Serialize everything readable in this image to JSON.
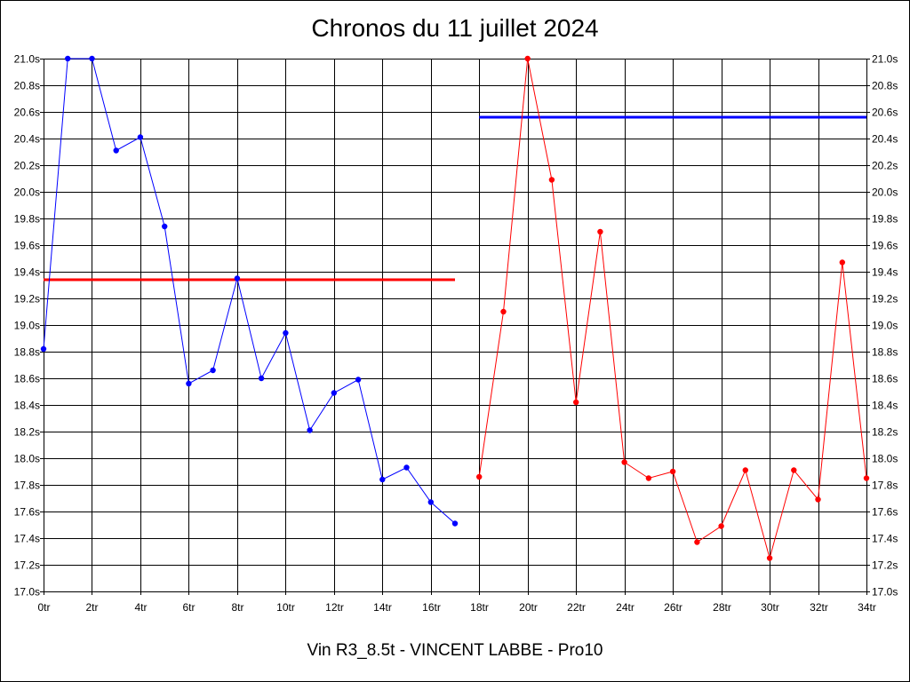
{
  "title": "Chronos du 11 juillet 2024",
  "footer": "Vin R3_8.5t - VINCENT LABBE - Pro10",
  "colors": {
    "series_blue": "#0000ff",
    "series_red": "#ff0000",
    "grid": "#000000",
    "background": "#ffffff"
  },
  "chart_data": {
    "type": "line",
    "title": "Chronos du 11 juillet 2024",
    "xlabel": "",
    "ylabel": "",
    "xlim": [
      0,
      34
    ],
    "ylim": [
      17.0,
      21.0
    ],
    "grid": true,
    "x_tick_labels": [
      "0tr",
      "2tr",
      "4tr",
      "6tr",
      "8tr",
      "10tr",
      "12tr",
      "14tr",
      "16tr",
      "18tr",
      "20tr",
      "22tr",
      "24tr",
      "26tr",
      "28tr",
      "30tr",
      "32tr",
      "34tr"
    ],
    "y_tick_labels": [
      "21.0s",
      "20.8s",
      "20.6s",
      "20.4s",
      "20.2s",
      "20.0s",
      "19.8s",
      "19.6s",
      "19.4s",
      "19.2s",
      "19.0s",
      "18.8s",
      "18.6s",
      "18.4s",
      "18.2s",
      "18.0s",
      "17.8s",
      "17.6s",
      "17.4s",
      "17.2s",
      "17.0s"
    ],
    "series": [
      {
        "color": "#0000ff",
        "x": [
          0,
          1,
          2,
          3,
          4,
          5,
          6,
          7,
          8,
          9,
          10,
          11,
          12,
          13,
          14,
          15,
          16,
          17
        ],
        "values": [
          18.82,
          21.0,
          21.0,
          20.31,
          20.41,
          19.74,
          18.56,
          18.66,
          19.35,
          18.6,
          18.94,
          18.21,
          18.49,
          18.59,
          17.84,
          17.93,
          17.67,
          17.51
        ]
      },
      {
        "color": "#ff0000",
        "x": [
          18,
          19,
          20,
          21,
          22,
          23,
          24,
          25,
          26,
          27,
          28,
          29,
          30,
          31,
          32,
          33,
          34
        ],
        "values": [
          17.86,
          19.1,
          21.0,
          20.09,
          18.42,
          19.7,
          17.97,
          17.85,
          17.9,
          17.37,
          17.49,
          17.91,
          17.25,
          17.91,
          17.69,
          19.47,
          17.85
        ]
      }
    ],
    "reference_lines": [
      {
        "color": "#ff0000",
        "value": 19.34,
        "x_range": [
          0,
          17
        ]
      },
      {
        "color": "#0000ff",
        "value": 20.56,
        "x_range": [
          18,
          34
        ]
      }
    ]
  }
}
